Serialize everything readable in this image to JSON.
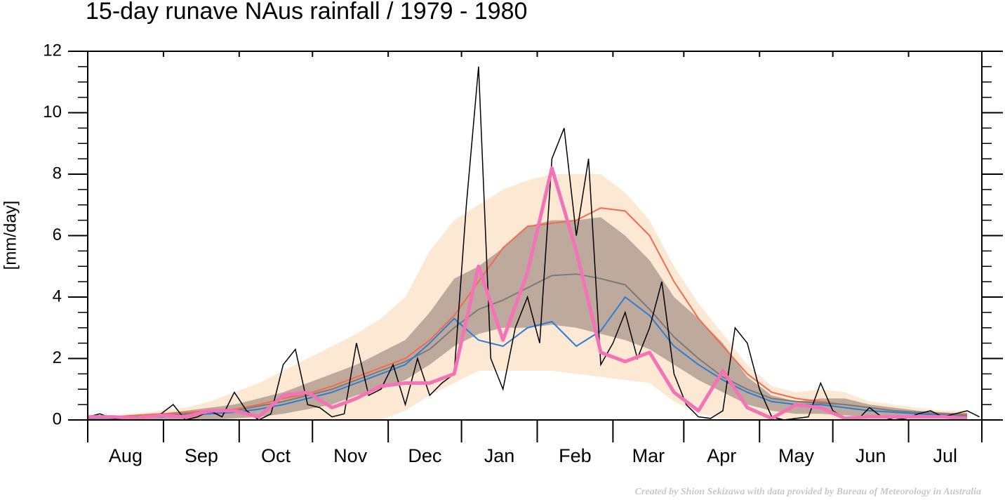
{
  "chart_data": {
    "type": "line",
    "title": "15-day runave NAus rainfall  /  1979 - 1980",
    "y_label": "[mm/day]",
    "footnote": "Created by Shion Sekizawa with data provided by Bureau of Meteorology in Australia",
    "months": [
      "Aug",
      "Sep",
      "Oct",
      "Nov",
      "Dec",
      "Jan",
      "Feb",
      "Mar",
      "Apr",
      "May",
      "Jun",
      "Jul"
    ],
    "month_starts": [
      0,
      31,
      62,
      92,
      123,
      153,
      184,
      215,
      244,
      275,
      305,
      336,
      366
    ],
    "xlim": [
      0,
      366
    ],
    "ylim": [
      0,
      12
    ],
    "yticks": [
      0,
      2,
      4,
      6,
      8,
      10,
      12
    ],
    "yminor": 0.5,
    "x": [
      0,
      10,
      20,
      30,
      40,
      50,
      60,
      70,
      80,
      90,
      100,
      110,
      120,
      130,
      140,
      150,
      160,
      170,
      180,
      190,
      200,
      210,
      220,
      230,
      240,
      250,
      260,
      270,
      280,
      290,
      300,
      310,
      320,
      330,
      340,
      350,
      360
    ],
    "bands": [
      {
        "color": "#fde9d3",
        "upper": [
          0.1,
          0.15,
          0.2,
          0.3,
          0.4,
          0.6,
          0.9,
          1.2,
          1.6,
          2.0,
          2.4,
          2.8,
          3.3,
          4.0,
          5.5,
          6.5,
          7.0,
          7.5,
          7.8,
          8.0,
          8.0,
          8.0,
          7.4,
          6.5,
          5.0,
          3.8,
          2.8,
          1.8,
          1.1,
          0.9,
          1.0,
          0.9,
          0.6,
          0.5,
          0.4,
          0.3,
          0.3
        ],
        "lower": [
          0,
          0,
          0,
          0,
          0,
          0,
          0,
          0,
          0,
          0,
          0,
          0,
          0,
          0.3,
          0.8,
          1.2,
          1.6,
          1.6,
          1.6,
          1.6,
          1.5,
          1.4,
          1.3,
          1.2,
          0.6,
          0.2,
          0.05,
          0,
          0,
          0,
          0,
          0,
          0,
          0,
          0,
          0,
          0
        ]
      },
      {
        "color": "#bdaa9c",
        "upper": [
          0.05,
          0.1,
          0.1,
          0.2,
          0.3,
          0.4,
          0.5,
          0.7,
          0.9,
          1.2,
          1.5,
          1.8,
          2.2,
          2.6,
          3.5,
          4.6,
          5.0,
          5.6,
          6.3,
          6.5,
          6.5,
          6.6,
          6.0,
          5.2,
          4.0,
          3.3,
          2.5,
          1.4,
          0.8,
          0.6,
          0.7,
          0.7,
          0.5,
          0.4,
          0.3,
          0.25,
          0.2
        ],
        "lower": [
          0,
          0,
          0,
          0,
          0,
          0,
          0.05,
          0.1,
          0.2,
          0.35,
          0.5,
          0.8,
          1.0,
          1.3,
          1.8,
          2.4,
          2.8,
          3.0,
          3.0,
          3.1,
          3.0,
          2.8,
          2.6,
          2.3,
          1.8,
          1.3,
          0.9,
          0.5,
          0.3,
          0.2,
          0.2,
          0.15,
          0.1,
          0.05,
          0.05,
          0.05,
          0.05
        ]
      }
    ],
    "lines": [
      {
        "color": "#f26a4f",
        "width": 2,
        "values": [
          0.05,
          0.1,
          0.15,
          0.2,
          0.25,
          0.3,
          0.35,
          0.5,
          0.7,
          0.85,
          1.1,
          1.4,
          1.7,
          2.0,
          2.6,
          3.4,
          4.5,
          5.6,
          6.3,
          6.4,
          6.5,
          6.9,
          6.8,
          6.0,
          4.5,
          3.3,
          2.4,
          1.5,
          0.9,
          0.7,
          0.6,
          0.5,
          0.4,
          0.3,
          0.25,
          0.2,
          0.2
        ]
      },
      {
        "color": "#7a7a7a",
        "width": 2,
        "values": [
          0.05,
          0.08,
          0.1,
          0.15,
          0.2,
          0.25,
          0.3,
          0.45,
          0.6,
          0.8,
          1.0,
          1.3,
          1.6,
          1.9,
          2.3,
          3.0,
          3.6,
          3.9,
          4.3,
          4.7,
          4.75,
          4.6,
          4.4,
          3.6,
          2.7,
          2.0,
          1.4,
          1.0,
          0.7,
          0.6,
          0.55,
          0.5,
          0.4,
          0.3,
          0.25,
          0.2,
          0.15
        ]
      },
      {
        "color": "#2a7fd4",
        "width": 2,
        "values": [
          0.05,
          0.05,
          0.1,
          0.1,
          0.15,
          0.2,
          0.25,
          0.35,
          0.5,
          0.7,
          0.9,
          1.2,
          1.5,
          1.8,
          2.5,
          3.3,
          2.6,
          2.4,
          3.0,
          3.2,
          2.4,
          2.9,
          4.0,
          3.4,
          2.4,
          1.8,
          1.3,
          0.9,
          0.6,
          0.5,
          0.5,
          0.4,
          0.3,
          0.25,
          0.2,
          0.15,
          0.1
        ]
      },
      {
        "color": "#f472b6",
        "width": 5,
        "values": [
          0.1,
          0.1,
          0.05,
          0.15,
          0.1,
          0.3,
          0.3,
          0.1,
          0.8,
          0.9,
          0.4,
          0.7,
          1.1,
          1.2,
          1.2,
          1.5,
          5.0,
          2.6,
          4.8,
          8.2,
          5.5,
          2.2,
          1.9,
          2.2,
          0.9,
          0.3,
          1.6,
          0.4,
          0.05,
          0.5,
          0.4,
          0.05,
          0.1,
          0.1,
          0.1,
          0.1,
          0.05
        ]
      }
    ],
    "daily": {
      "color": "#000000",
      "x": [
        0,
        5,
        10,
        15,
        20,
        25,
        30,
        35,
        40,
        45,
        50,
        55,
        60,
        65,
        70,
        75,
        80,
        85,
        90,
        95,
        100,
        105,
        110,
        115,
        120,
        125,
        130,
        135,
        140,
        145,
        150,
        155,
        160,
        165,
        170,
        175,
        180,
        185,
        190,
        195,
        200,
        205,
        210,
        215,
        220,
        225,
        230,
        235,
        240,
        245,
        250,
        255,
        260,
        265,
        270,
        275,
        280,
        285,
        290,
        295,
        300,
        305,
        310,
        315,
        320,
        325,
        330,
        335,
        340,
        345,
        350,
        355,
        360,
        365
      ],
      "values": [
        0.1,
        0.2,
        0.05,
        0,
        0,
        0.1,
        0.2,
        0.5,
        0,
        0.1,
        0.3,
        0.1,
        0.9,
        0.3,
        0,
        0.2,
        1.8,
        2.3,
        0.5,
        0.4,
        0.1,
        0.2,
        2.5,
        0.8,
        1.0,
        1.8,
        0.5,
        2.0,
        0.8,
        1.2,
        1.5,
        7.0,
        11.5,
        2.0,
        1.0,
        3.0,
        4.0,
        2.5,
        8.5,
        9.5,
        6.0,
        8.5,
        1.8,
        2.5,
        3.5,
        2.0,
        3.0,
        4.5,
        1.5,
        0.5,
        0.1,
        0.05,
        0.3,
        3.0,
        2.5,
        1.0,
        0.1,
        0,
        0.05,
        0.1,
        1.2,
        0.3,
        0.05,
        0,
        0.4,
        0.1,
        0,
        0.05,
        0.2,
        0.3,
        0.1,
        0.2,
        0.3,
        0.1
      ]
    }
  }
}
